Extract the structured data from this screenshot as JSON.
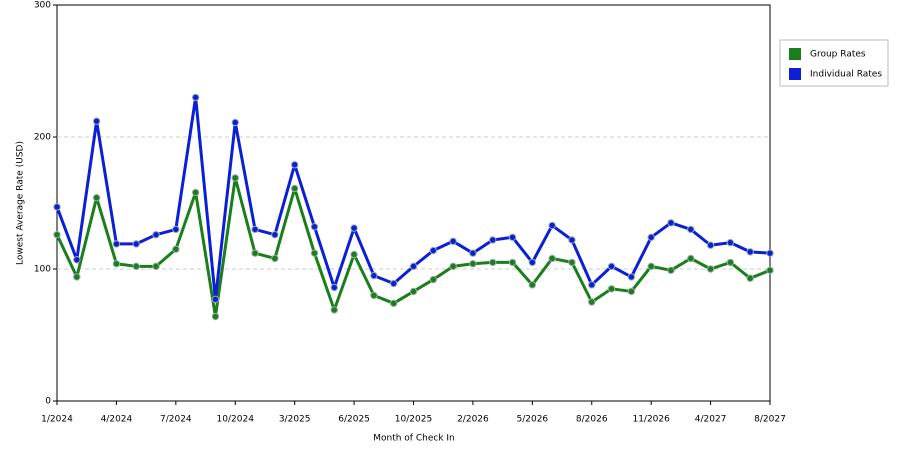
{
  "chart_data": {
    "type": "line",
    "y_label": "Lowest Average Rate (USD)",
    "x_label": "Month of Check In",
    "categories": [
      "1/2024",
      null,
      null,
      "4/2024",
      null,
      null,
      "7/2024",
      null,
      null,
      "10/2024",
      null,
      null,
      "3/2025",
      null,
      null,
      "6/2025",
      null,
      null,
      "10/2025",
      null,
      null,
      "2/2026",
      null,
      null,
      "5/2026",
      null,
      null,
      "8/2026",
      null,
      null,
      "11/2026",
      null,
      null,
      "4/2027",
      null,
      null,
      "8/2027"
    ],
    "series": [
      {
        "name": "Group Rates",
        "color": "#1a7f1a",
        "values": [
          126,
          94,
          154,
          104,
          102,
          102,
          115,
          158,
          64,
          169,
          112,
          108,
          161,
          112,
          69,
          111,
          80,
          74,
          83,
          92,
          102,
          104,
          105,
          105,
          88,
          108,
          105,
          75,
          85,
          83,
          102,
          99,
          108,
          100,
          105,
          93,
          99
        ]
      },
      {
        "name": "Individual Rates",
        "color": "#0b1fd6",
        "values": [
          147,
          107,
          212,
          119,
          119,
          126,
          130,
          230,
          77,
          211,
          130,
          126,
          179,
          132,
          86,
          131,
          95,
          89,
          102,
          114,
          121,
          112,
          122,
          124,
          105,
          133,
          122,
          88,
          102,
          94,
          124,
          135,
          130,
          118,
          120,
          113,
          112
        ]
      }
    ],
    "ylim": [
      0,
      300
    ],
    "yticks": [
      0,
      100,
      200,
      300
    ],
    "grid": true,
    "legend": "right"
  }
}
